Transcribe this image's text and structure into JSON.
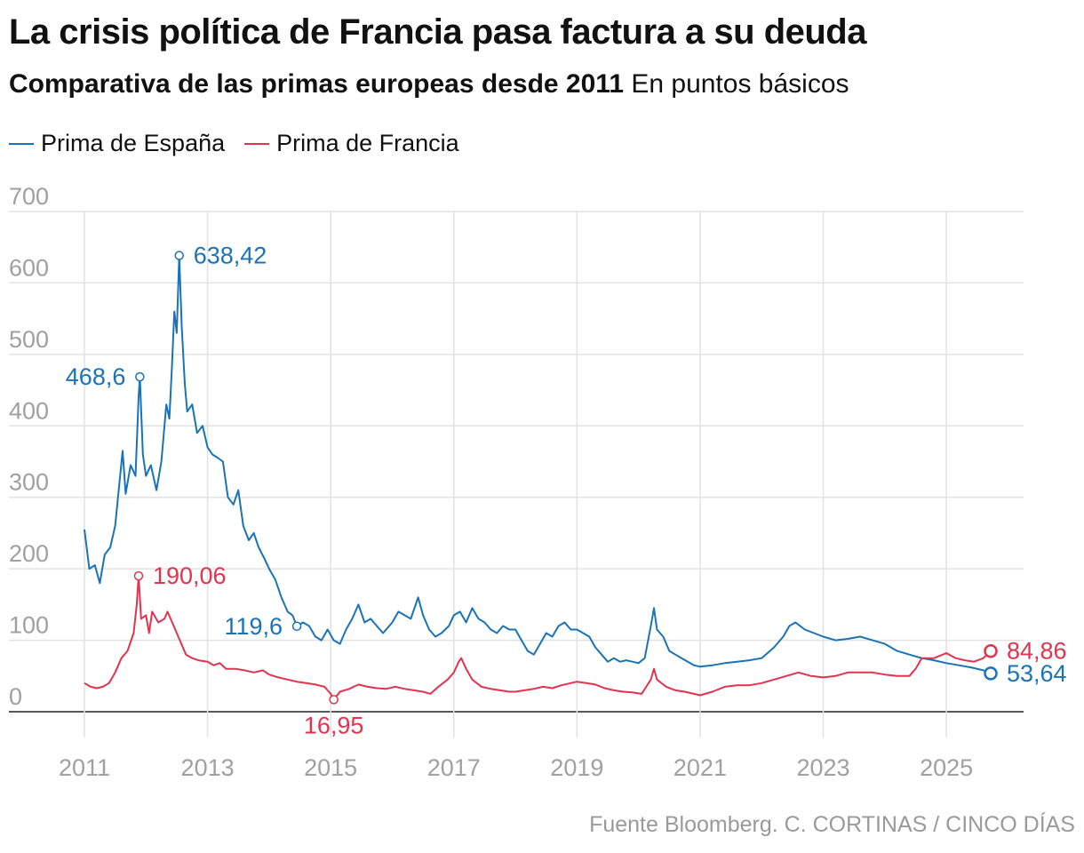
{
  "header": {
    "title": "La crisis política de Francia pasa factura a su deuda",
    "subtitle_bold": "Comparativa de las primas europeas desde 2011",
    "subtitle_rest": " En puntos básicos"
  },
  "footer": {
    "source": "Fuente Bloomberg. C. CORTINAS / CINCO DÍAS"
  },
  "colors": {
    "spain": "#1a73b8",
    "france": "#e0344f",
    "grid": "#e2e2e2",
    "axis": "#222222",
    "tick_text": "#a0a0a0"
  },
  "chart_data": {
    "type": "line",
    "title": "",
    "xlabel": "",
    "ylabel": "",
    "xlim": [
      2011,
      2026.3
    ],
    "ylim": [
      0,
      700
    ],
    "grid": true,
    "legend_position": "top-left",
    "y_ticks": [
      0,
      100,
      200,
      300,
      400,
      500,
      600,
      700
    ],
    "x_ticks": [
      "2011",
      "2013",
      "2015",
      "2017",
      "2019",
      "2021",
      "2023",
      "2025"
    ],
    "series": [
      {
        "name": "Prima de España",
        "color": "#1a73b8",
        "points": [
          [
            2011.0,
            255
          ],
          [
            2011.08,
            200
          ],
          [
            2011.17,
            205
          ],
          [
            2011.25,
            180
          ],
          [
            2011.33,
            220
          ],
          [
            2011.42,
            230
          ],
          [
            2011.5,
            260
          ],
          [
            2011.58,
            330
          ],
          [
            2011.62,
            365
          ],
          [
            2011.67,
            305
          ],
          [
            2011.75,
            345
          ],
          [
            2011.83,
            330
          ],
          [
            2011.88,
            440
          ],
          [
            2011.9,
            468.6
          ],
          [
            2011.95,
            360
          ],
          [
            2012.0,
            330
          ],
          [
            2012.08,
            345
          ],
          [
            2012.17,
            310
          ],
          [
            2012.25,
            350
          ],
          [
            2012.33,
            430
          ],
          [
            2012.38,
            410
          ],
          [
            2012.42,
            480
          ],
          [
            2012.46,
            560
          ],
          [
            2012.5,
            530
          ],
          [
            2012.54,
            638.42
          ],
          [
            2012.58,
            540
          ],
          [
            2012.63,
            460
          ],
          [
            2012.67,
            420
          ],
          [
            2012.75,
            430
          ],
          [
            2012.83,
            390
          ],
          [
            2012.92,
            400
          ],
          [
            2013.0,
            370
          ],
          [
            2013.08,
            360
          ],
          [
            2013.17,
            355
          ],
          [
            2013.25,
            350
          ],
          [
            2013.33,
            300
          ],
          [
            2013.42,
            290
          ],
          [
            2013.5,
            310
          ],
          [
            2013.58,
            260
          ],
          [
            2013.67,
            240
          ],
          [
            2013.75,
            250
          ],
          [
            2013.83,
            230
          ],
          [
            2013.92,
            215
          ],
          [
            2014.0,
            200
          ],
          [
            2014.1,
            185
          ],
          [
            2014.2,
            160
          ],
          [
            2014.3,
            140
          ],
          [
            2014.38,
            135
          ],
          [
            2014.45,
            119.6
          ],
          [
            2014.55,
            125
          ],
          [
            2014.65,
            120
          ],
          [
            2014.75,
            105
          ],
          [
            2014.85,
            100
          ],
          [
            2014.95,
            115
          ],
          [
            2015.05,
            100
          ],
          [
            2015.15,
            95
          ],
          [
            2015.25,
            115
          ],
          [
            2015.35,
            130
          ],
          [
            2015.45,
            150
          ],
          [
            2015.55,
            125
          ],
          [
            2015.65,
            130
          ],
          [
            2015.75,
            120
          ],
          [
            2015.85,
            110
          ],
          [
            2016.0,
            125
          ],
          [
            2016.1,
            140
          ],
          [
            2016.2,
            135
          ],
          [
            2016.3,
            130
          ],
          [
            2016.42,
            160
          ],
          [
            2016.5,
            135
          ],
          [
            2016.6,
            115
          ],
          [
            2016.7,
            105
          ],
          [
            2016.8,
            110
          ],
          [
            2016.92,
            120
          ],
          [
            2017.0,
            135
          ],
          [
            2017.1,
            140
          ],
          [
            2017.2,
            125
          ],
          [
            2017.3,
            145
          ],
          [
            2017.4,
            130
          ],
          [
            2017.5,
            125
          ],
          [
            2017.6,
            115
          ],
          [
            2017.7,
            110
          ],
          [
            2017.8,
            120
          ],
          [
            2017.9,
            115
          ],
          [
            2018.0,
            115
          ],
          [
            2018.1,
            100
          ],
          [
            2018.2,
            85
          ],
          [
            2018.3,
            80
          ],
          [
            2018.4,
            95
          ],
          [
            2018.5,
            110
          ],
          [
            2018.6,
            105
          ],
          [
            2018.7,
            120
          ],
          [
            2018.8,
            125
          ],
          [
            2018.9,
            115
          ],
          [
            2019.0,
            115
          ],
          [
            2019.1,
            110
          ],
          [
            2019.2,
            105
          ],
          [
            2019.3,
            90
          ],
          [
            2019.4,
            80
          ],
          [
            2019.5,
            70
          ],
          [
            2019.6,
            75
          ],
          [
            2019.7,
            70
          ],
          [
            2019.8,
            72
          ],
          [
            2019.9,
            70
          ],
          [
            2020.0,
            68
          ],
          [
            2020.1,
            75
          ],
          [
            2020.2,
            120
          ],
          [
            2020.25,
            145
          ],
          [
            2020.3,
            115
          ],
          [
            2020.4,
            105
          ],
          [
            2020.5,
            85
          ],
          [
            2020.6,
            80
          ],
          [
            2020.7,
            75
          ],
          [
            2020.8,
            70
          ],
          [
            2020.9,
            65
          ],
          [
            2021.0,
            63
          ],
          [
            2021.2,
            65
          ],
          [
            2021.4,
            68
          ],
          [
            2021.6,
            70
          ],
          [
            2021.8,
            72
          ],
          [
            2022.0,
            75
          ],
          [
            2022.2,
            90
          ],
          [
            2022.35,
            105
          ],
          [
            2022.45,
            120
          ],
          [
            2022.55,
            125
          ],
          [
            2022.7,
            115
          ],
          [
            2022.85,
            110
          ],
          [
            2023.0,
            105
          ],
          [
            2023.2,
            100
          ],
          [
            2023.4,
            102
          ],
          [
            2023.6,
            105
          ],
          [
            2023.8,
            100
          ],
          [
            2024.0,
            95
          ],
          [
            2024.2,
            85
          ],
          [
            2024.4,
            80
          ],
          [
            2024.6,
            75
          ],
          [
            2024.8,
            72
          ],
          [
            2025.0,
            68
          ],
          [
            2025.2,
            65
          ],
          [
            2025.4,
            62
          ],
          [
            2025.6,
            58
          ],
          [
            2025.72,
            53.64
          ]
        ]
      },
      {
        "name": "Prima de Francia",
        "color": "#e0344f",
        "points": [
          [
            2011.0,
            40
          ],
          [
            2011.1,
            35
          ],
          [
            2011.2,
            33
          ],
          [
            2011.3,
            35
          ],
          [
            2011.4,
            40
          ],
          [
            2011.5,
            55
          ],
          [
            2011.6,
            75
          ],
          [
            2011.7,
            85
          ],
          [
            2011.8,
            110
          ],
          [
            2011.85,
            150
          ],
          [
            2011.88,
            190.06
          ],
          [
            2011.92,
            130
          ],
          [
            2012.0,
            135
          ],
          [
            2012.05,
            110
          ],
          [
            2012.1,
            140
          ],
          [
            2012.2,
            125
          ],
          [
            2012.3,
            130
          ],
          [
            2012.35,
            140
          ],
          [
            2012.45,
            120
          ],
          [
            2012.55,
            100
          ],
          [
            2012.65,
            80
          ],
          [
            2012.75,
            75
          ],
          [
            2012.85,
            72
          ],
          [
            2013.0,
            70
          ],
          [
            2013.1,
            65
          ],
          [
            2013.2,
            68
          ],
          [
            2013.3,
            60
          ],
          [
            2013.45,
            60
          ],
          [
            2013.6,
            58
          ],
          [
            2013.75,
            55
          ],
          [
            2013.9,
            58
          ],
          [
            2014.0,
            52
          ],
          [
            2014.15,
            48
          ],
          [
            2014.3,
            45
          ],
          [
            2014.45,
            42
          ],
          [
            2014.6,
            40
          ],
          [
            2014.75,
            38
          ],
          [
            2014.9,
            35
          ],
          [
            2015.0,
            25
          ],
          [
            2015.05,
            16.95
          ],
          [
            2015.15,
            28
          ],
          [
            2015.3,
            32
          ],
          [
            2015.45,
            38
          ],
          [
            2015.6,
            35
          ],
          [
            2015.75,
            33
          ],
          [
            2015.9,
            32
          ],
          [
            2016.05,
            35
          ],
          [
            2016.2,
            32
          ],
          [
            2016.35,
            30
          ],
          [
            2016.5,
            28
          ],
          [
            2016.62,
            25
          ],
          [
            2016.75,
            35
          ],
          [
            2016.9,
            45
          ],
          [
            2017.0,
            55
          ],
          [
            2017.08,
            70
          ],
          [
            2017.12,
            75
          ],
          [
            2017.2,
            60
          ],
          [
            2017.3,
            45
          ],
          [
            2017.45,
            35
          ],
          [
            2017.6,
            32
          ],
          [
            2017.75,
            30
          ],
          [
            2017.9,
            28
          ],
          [
            2018.0,
            28
          ],
          [
            2018.15,
            30
          ],
          [
            2018.3,
            32
          ],
          [
            2018.45,
            35
          ],
          [
            2018.6,
            33
          ],
          [
            2018.75,
            37
          ],
          [
            2018.9,
            40
          ],
          [
            2019.0,
            42
          ],
          [
            2019.15,
            40
          ],
          [
            2019.3,
            38
          ],
          [
            2019.45,
            33
          ],
          [
            2019.6,
            30
          ],
          [
            2019.75,
            28
          ],
          [
            2019.9,
            27
          ],
          [
            2020.05,
            25
          ],
          [
            2020.2,
            45
          ],
          [
            2020.25,
            60
          ],
          [
            2020.3,
            45
          ],
          [
            2020.45,
            35
          ],
          [
            2020.6,
            30
          ],
          [
            2020.75,
            28
          ],
          [
            2020.9,
            25
          ],
          [
            2021.0,
            23
          ],
          [
            2021.2,
            28
          ],
          [
            2021.4,
            35
          ],
          [
            2021.6,
            37
          ],
          [
            2021.8,
            37
          ],
          [
            2022.0,
            40
          ],
          [
            2022.2,
            45
          ],
          [
            2022.4,
            50
          ],
          [
            2022.6,
            55
          ],
          [
            2022.8,
            50
          ],
          [
            2023.0,
            48
          ],
          [
            2023.2,
            50
          ],
          [
            2023.4,
            55
          ],
          [
            2023.6,
            55
          ],
          [
            2023.8,
            55
          ],
          [
            2024.0,
            52
          ],
          [
            2024.2,
            50
          ],
          [
            2024.4,
            50
          ],
          [
            2024.5,
            60
          ],
          [
            2024.6,
            75
          ],
          [
            2024.8,
            75
          ],
          [
            2025.0,
            82
          ],
          [
            2025.15,
            75
          ],
          [
            2025.3,
            72
          ],
          [
            2025.45,
            70
          ],
          [
            2025.6,
            75
          ],
          [
            2025.72,
            84.86
          ]
        ]
      }
    ],
    "annotations": [
      {
        "series": 0,
        "x": 2011.9,
        "y": 468.6,
        "label": "468,6",
        "anchor": "end"
      },
      {
        "series": 0,
        "x": 2012.54,
        "y": 638.42,
        "label": "638,42",
        "anchor": "start"
      },
      {
        "series": 0,
        "x": 2014.45,
        "y": 119.6,
        "label": "119,6",
        "anchor": "end"
      },
      {
        "series": 0,
        "x": 2025.72,
        "y": 53.64,
        "label": "53,64",
        "anchor": "start"
      },
      {
        "series": 1,
        "x": 2011.88,
        "y": 190.06,
        "label": "190,06",
        "anchor": "start"
      },
      {
        "series": 1,
        "x": 2015.05,
        "y": 16.95,
        "label": "16,95",
        "anchor": "middle-below"
      },
      {
        "series": 1,
        "x": 2025.72,
        "y": 84.86,
        "label": "84,86",
        "anchor": "start"
      }
    ]
  }
}
